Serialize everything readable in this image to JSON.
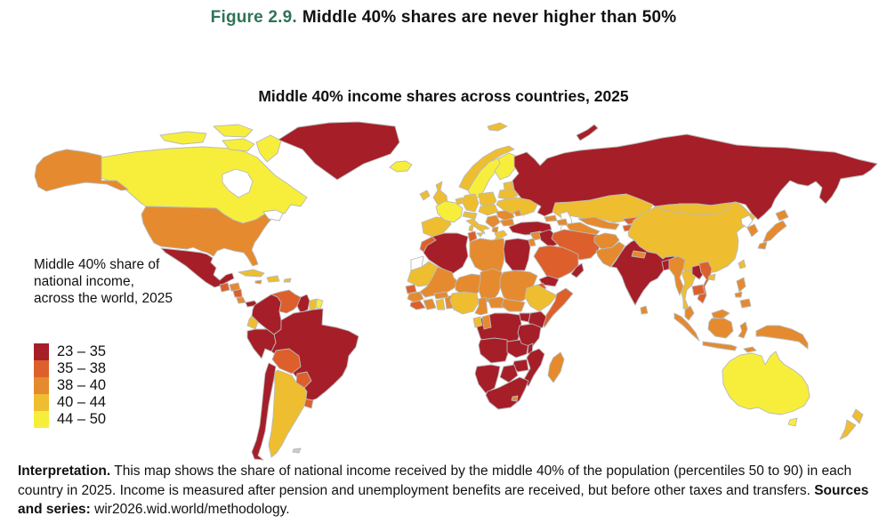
{
  "figure": {
    "label": "Figure 2.9.",
    "label_color": "#2F7457",
    "title": "Middle 40% shares are never higher than 50%"
  },
  "map": {
    "title": "Middle 40% income shares across countries, 2025",
    "border_color": "#b9b9b9",
    "ocean_color": "#ffffff",
    "no_data_color": "#ffffff"
  },
  "legend": {
    "title_lines": [
      "Middle 40% share of",
      "national income,",
      "across the world, 2025"
    ],
    "items": [
      {
        "range": "23 – 35",
        "color": "#A61E28"
      },
      {
        "range": "35 – 38",
        "color": "#DD5F2B"
      },
      {
        "range": "38 – 40",
        "color": "#E58A2E"
      },
      {
        "range": "40 – 44",
        "color": "#EEBE30"
      },
      {
        "range": "44 – 50",
        "color": "#F7EE3C"
      }
    ]
  },
  "interpretation": {
    "label": "Interpretation.",
    "text": " This map shows the share of national income received by the middle 40% of the population (percentiles 50 to 90) in each country in 2025. Income is measured after pension and unemployment benefits are received, but before other taxes and transfers. ",
    "sources_label": "Sources and series:",
    "sources_text": " wir2026.wid.world/methodology."
  },
  "chart_data": {
    "type": "heatmap",
    "subtype": "choropleth-world-map",
    "title": "Middle 40% income shares across countries, 2025",
    "unit": "% of national income received by middle 40% (percentiles 50 to 90)",
    "year": "2025",
    "legend_position": "left",
    "buckets": [
      {
        "label": "23 – 35",
        "color": "#A61E28"
      },
      {
        "label": "35 – 38",
        "color": "#DD5F2B"
      },
      {
        "label": "38 – 40",
        "color": "#E58A2E"
      },
      {
        "label": "40 – 44",
        "color": "#EEBE30"
      },
      {
        "label": "44 – 50",
        "color": "#F7EE3C"
      }
    ],
    "countries_by_bucket": {
      "23 – 35": [
        "Russia",
        "Turkey",
        "Greenland",
        "Mexico",
        "Panama",
        "Colombia",
        "Peru",
        "Brazil",
        "Chile",
        "Guyana",
        "Algeria",
        "Egypt",
        "DR Congo",
        "Angola",
        "Zambia",
        "Malawi",
        "Tanzania",
        "Kenya",
        "Uganda",
        "Mozambique",
        "Zimbabwe",
        "Namibia",
        "Botswana",
        "South Africa",
        "India",
        "Bangladesh",
        "Iraq",
        "Yemen",
        "Oman",
        "Laos"
      ],
      "35 – 38": [
        "Morocco",
        "Tunisia",
        "Venezuela",
        "Bolivia",
        "Paraguay",
        "Uruguay",
        "Guatemala",
        "Nicaragua",
        "Senegal",
        "Sierra Leone",
        "Liberia",
        "Eritrea",
        "Somalia",
        "Saudi Arabia",
        "Iran",
        "Kyrgyzstan",
        "Tajikistan",
        "Vietnam",
        "Cambodia"
      ],
      "38 – 40": [
        "United States",
        "Honduras",
        "Costa Rica",
        "Jamaica",
        "Libya",
        "Mali",
        "Niger",
        "Chad",
        "Sudan",
        "South Sudan",
        "Central African Republic",
        "Cameroon",
        "Guinea",
        "Ivory Coast",
        "Burkina Faso",
        "Togo",
        "Benin",
        "Congo",
        "Madagascar",
        "Lesotho",
        "Syria",
        "Jordan",
        "Georgia",
        "Azerbaijan",
        "Serbia",
        "Albania",
        "Romania",
        "Bulgaria",
        "Moldova",
        "Uzbekistan",
        "Turkmenistan",
        "Afghanistan",
        "Pakistan",
        "Nepal",
        "Myanmar",
        "Sri Lanka",
        "Malaysia",
        "Indonesia",
        "Philippines",
        "Papua New Guinea",
        "Japan",
        "South Korea"
      ],
      "40 – 44": [
        "United Kingdom",
        "Ireland",
        "Norway",
        "Denmark",
        "Germany",
        "Benelux",
        "Switzerland",
        "Austria",
        "Poland",
        "Czechia",
        "Slovakia",
        "Hungary",
        "Spain",
        "Portugal",
        "Italy",
        "Greece",
        "Ukraine",
        "Belarus",
        "Baltic states",
        "Kazakhstan",
        "Mongolia",
        "China",
        "Taiwan",
        "Thailand",
        "New Zealand",
        "Argentina",
        "Ecuador",
        "Cuba",
        "Dominican Republic",
        "Puerto Rico",
        "Suriname",
        "Mauritania",
        "Nigeria",
        "Ghana",
        "Ethiopia",
        "Gabon"
      ],
      "44 – 50": [
        "Canada",
        "France",
        "Sweden",
        "Finland",
        "Iceland",
        "Australia",
        "French Guiana"
      ]
    },
    "no_data": [
      "Western Sahara",
      "North Korea",
      "Falkland Islands"
    ]
  }
}
